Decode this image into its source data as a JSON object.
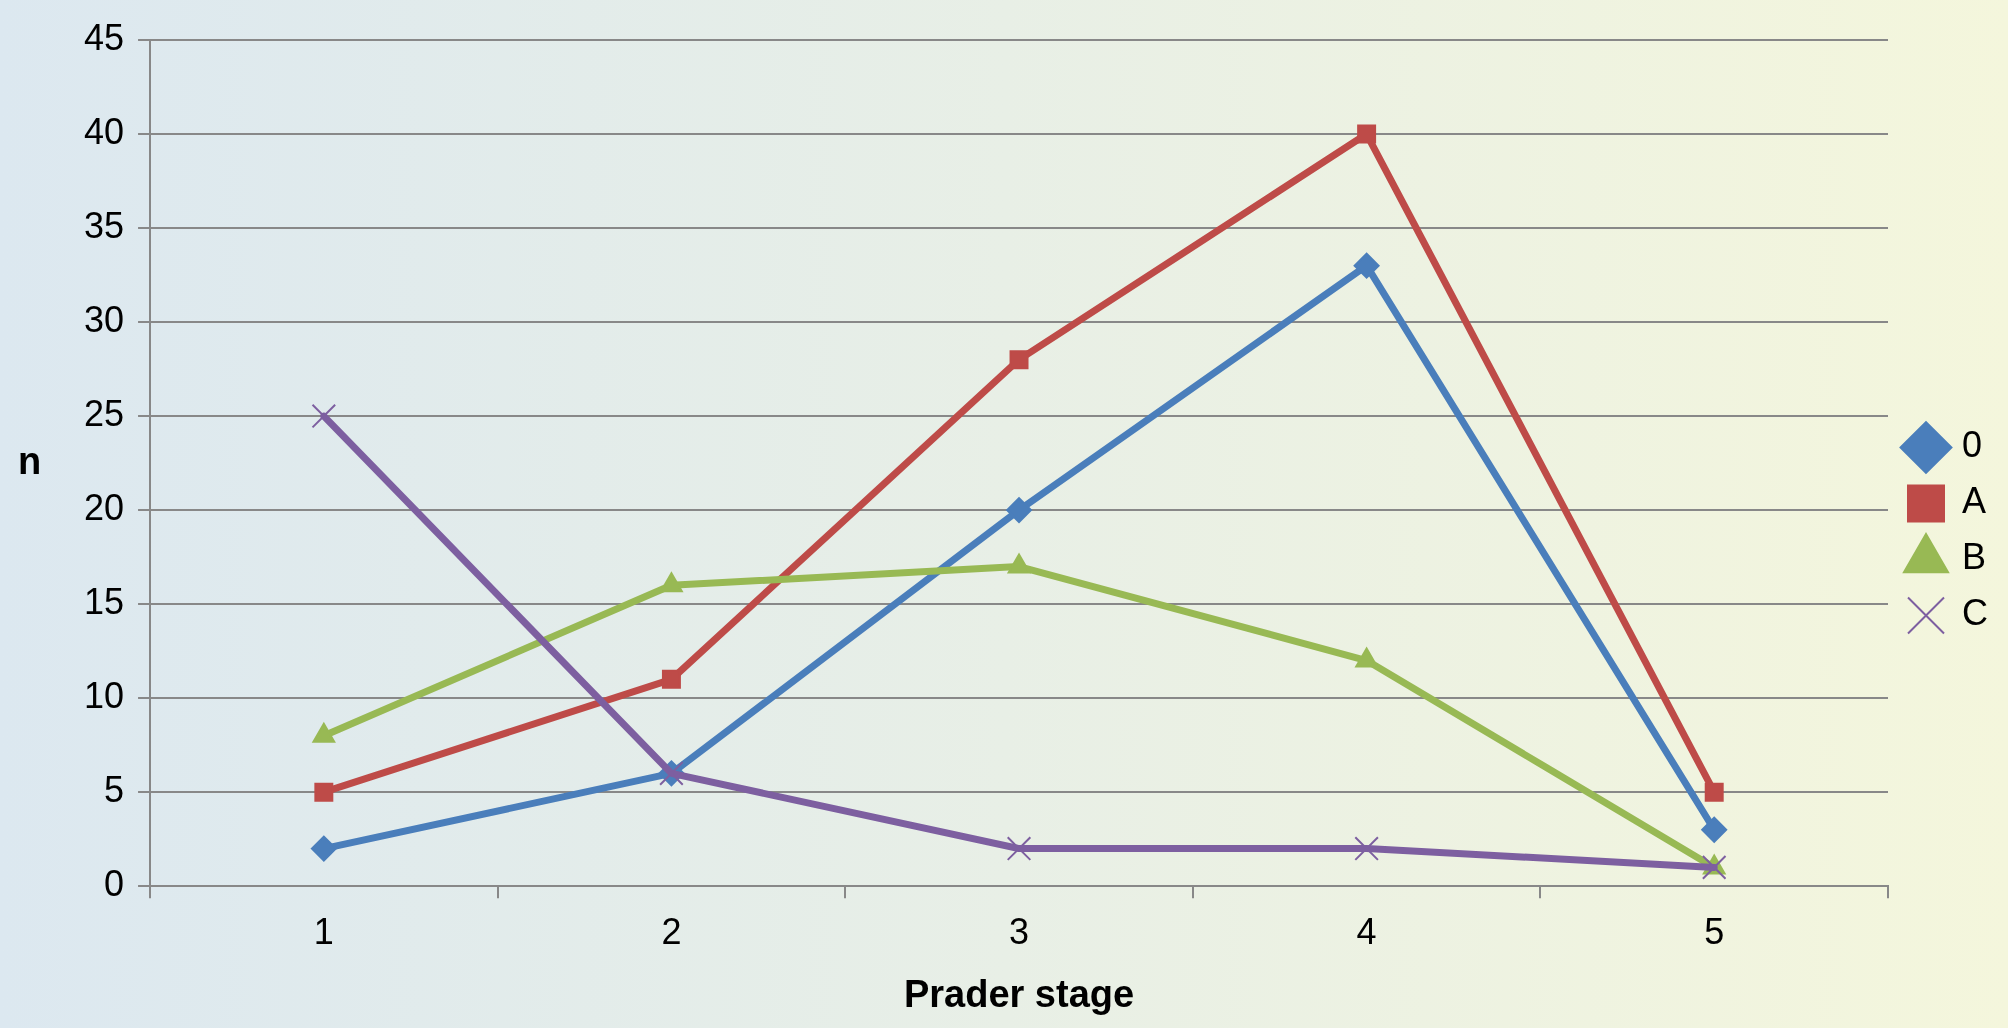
{
  "chart_data": {
    "type": "line",
    "xlabel": "Prader stage",
    "ylabel": "n",
    "categories": [
      "1",
      "2",
      "3",
      "4",
      "5"
    ],
    "ylim": [
      0,
      45
    ],
    "yticks": [
      0,
      5,
      10,
      15,
      20,
      25,
      30,
      35,
      40,
      45
    ],
    "grid": "y",
    "legend": "right",
    "series": [
      {
        "name": "0",
        "color": "#4a7ebb",
        "marker": "diamond",
        "values": [
          2,
          6,
          20,
          33,
          3
        ]
      },
      {
        "name": "A",
        "color": "#be4b48",
        "marker": "square",
        "values": [
          5,
          11,
          28,
          40,
          5
        ]
      },
      {
        "name": "B",
        "color": "#98b954",
        "marker": "triangle",
        "values": [
          8,
          16,
          17,
          12,
          1
        ]
      },
      {
        "name": "C",
        "color": "#7d5fa0",
        "marker": "cross",
        "values": [
          25,
          6,
          2,
          2,
          1
        ]
      }
    ]
  }
}
